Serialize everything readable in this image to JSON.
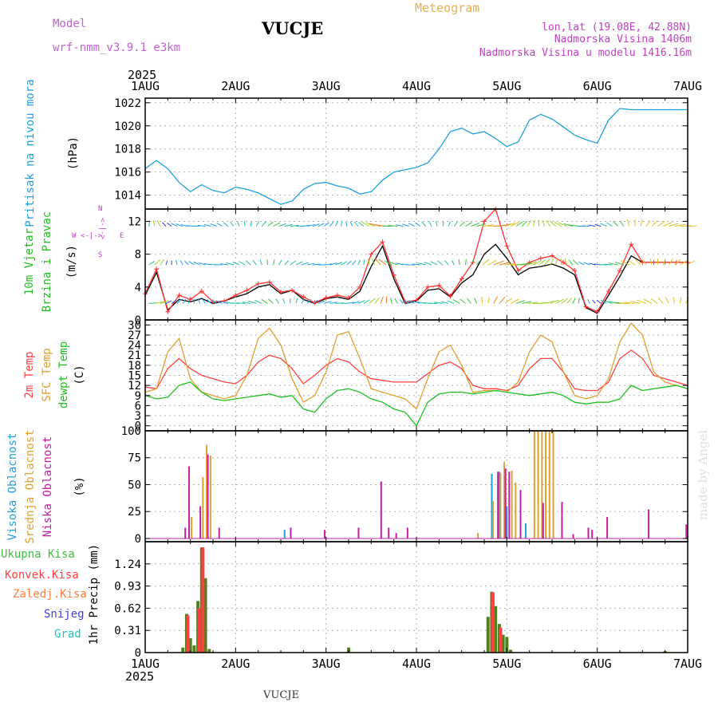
{
  "header": {
    "model_label": "Model",
    "model_name": "wrf-nmm_v3.9.1 e3km",
    "station": "VUCJE",
    "meteogram": "Meteogram",
    "lonlat": "lon,lat (19.08E, 42.88N)",
    "altitude": "Nadmorska Visina 1406m",
    "model_altitude": "Nadmorska Visina u modelu 1416.16m",
    "footer_station": "VUCJE",
    "watermark": "made by Angel",
    "year_top": "2025",
    "year_bottom": "2025",
    "colors": {
      "model": "#c060d0",
      "meteogram": "#e8b050",
      "info": "#c040c0"
    }
  },
  "axis_x": {
    "labels": [
      "1AUG",
      "2AUG",
      "3AUG",
      "4AUG",
      "5AUG",
      "6AUG",
      "7AUG"
    ],
    "range_hours": [
      0,
      144
    ]
  },
  "chart_data": [
    {
      "id": "pressure",
      "type": "line",
      "ylabel": [
        "Pritisak na nivou mora",
        "(hPa)"
      ],
      "ylim": [
        1012.8,
        1022.4
      ],
      "yticks": [
        1014,
        1016,
        1018,
        1020,
        1022
      ],
      "ytick_labels": [
        "1014",
        "1016",
        "1018",
        "1020",
        "1022"
      ],
      "color": "#20a0e0",
      "x": [
        0,
        3,
        6,
        9,
        12,
        15,
        18,
        21,
        24,
        27,
        30,
        33,
        36,
        39,
        42,
        45,
        48,
        51,
        54,
        57,
        60,
        63,
        66,
        69,
        72,
        75,
        78,
        81,
        84,
        87,
        90,
        93,
        96,
        99,
        102,
        105,
        108,
        111,
        114,
        117,
        120,
        123,
        126,
        129,
        132,
        135,
        138,
        141,
        144
      ],
      "values": [
        1016.3,
        1017.0,
        1016.3,
        1015.1,
        1014.3,
        1014.9,
        1014.4,
        1014.2,
        1014.7,
        1014.5,
        1014.2,
        1013.7,
        1013.2,
        1013.5,
        1014.5,
        1015.0,
        1015.1,
        1014.8,
        1014.6,
        1014.1,
        1014.3,
        1015.3,
        1016.0,
        1016.2,
        1016.4,
        1016.8,
        1018.0,
        1019.5,
        1019.8,
        1019.3,
        1019.5,
        1018.9,
        1018.2,
        1018.6,
        1020.5,
        1021.0,
        1020.6,
        1019.9,
        1019.2,
        1018.8,
        1018.5,
        1020.5,
        1021.5,
        1021.4,
        1021.4,
        1021.4,
        1021.4,
        1021.4,
        1021.4
      ]
    },
    {
      "id": "wind",
      "type": "line",
      "ylabel": [
        "10m Vjetar",
        "Brzina i Pravac",
        "(m/s)"
      ],
      "compass": {
        "n": "N",
        "w": "W",
        "e": "E",
        "s": "S",
        "arrows_h": "<-|->",
        "arrows_v": "<-|->"
      },
      "ylim": [
        0,
        13.5
      ],
      "yticks": [
        0,
        4,
        8,
        12
      ],
      "ytick_labels": [
        "0",
        "4",
        "8",
        "12"
      ],
      "x": [
        0,
        3,
        6,
        9,
        12,
        15,
        18,
        21,
        24,
        27,
        30,
        33,
        36,
        39,
        42,
        45,
        48,
        51,
        54,
        57,
        60,
        63,
        66,
        69,
        72,
        75,
        78,
        81,
        84,
        87,
        90,
        93,
        96,
        99,
        102,
        105,
        108,
        111,
        114,
        117,
        120,
        123,
        126,
        129,
        132,
        135,
        138,
        141,
        144
      ],
      "series": [
        {
          "name": "mean",
          "color": "#000000",
          "values": [
            3.0,
            5.8,
            1.2,
            2.5,
            2.2,
            2.6,
            2.0,
            2.3,
            2.8,
            3.2,
            4.0,
            4.3,
            3.2,
            3.6,
            2.5,
            2.0,
            2.6,
            2.8,
            2.5,
            3.5,
            6.5,
            9.0,
            5.0,
            2.0,
            2.3,
            3.6,
            3.8,
            2.8,
            4.5,
            5.5,
            8.0,
            9.2,
            7.5,
            5.5,
            6.3,
            6.5,
            6.8,
            6.3,
            5.5,
            1.5,
            0.8,
            3.0,
            5.3,
            7.8,
            7.0,
            7.0,
            7.0,
            7.0,
            7.0
          ]
        },
        {
          "name": "gust",
          "color": "#ff3030",
          "values": [
            3.2,
            6.2,
            1.0,
            3.0,
            2.5,
            3.5,
            2.2,
            2.3,
            3.0,
            3.6,
            4.4,
            4.6,
            3.4,
            3.6,
            2.8,
            2.1,
            2.7,
            3.0,
            2.7,
            4.0,
            8.0,
            9.5,
            5.5,
            2.2,
            2.4,
            4.0,
            4.2,
            2.9,
            5.0,
            7.0,
            12.0,
            13.5,
            9.0,
            6.0,
            7.0,
            7.5,
            7.8,
            7.0,
            6.0,
            1.6,
            1.0,
            3.5,
            6.0,
            9.2,
            7.0,
            7.0,
            7.0,
            7.0,
            7.0
          ]
        }
      ]
    },
    {
      "id": "temperature",
      "type": "line",
      "ylabel": [
        "2m Temp",
        "SFC Temp",
        "dewpt Temp",
        "(C)"
      ],
      "ylim": [
        -1.5,
        31.5
      ],
      "yticks": [
        0,
        3,
        6,
        9,
        12,
        15,
        18,
        21,
        24,
        27,
        30
      ],
      "ytick_labels": [
        "0",
        "3",
        "6",
        "9",
        "12",
        "15",
        "18",
        "21",
        "24",
        "27",
        "30"
      ],
      "x": [
        0,
        3,
        6,
        9,
        12,
        15,
        18,
        21,
        24,
        27,
        30,
        33,
        36,
        39,
        42,
        45,
        48,
        51,
        54,
        57,
        60,
        63,
        66,
        69,
        72,
        75,
        78,
        81,
        84,
        87,
        90,
        93,
        96,
        99,
        102,
        105,
        108,
        111,
        114,
        117,
        120,
        123,
        126,
        129,
        132,
        135,
        138,
        141,
        144
      ],
      "series": [
        {
          "name": "2m Temp",
          "color": "#ff4040",
          "values": [
            11.5,
            11.0,
            17.0,
            20.0,
            17.0,
            15.0,
            14.0,
            13.0,
            12.5,
            15.0,
            19.0,
            21.0,
            20.0,
            17.0,
            12.5,
            15.0,
            18.0,
            20.0,
            19.0,
            16.0,
            14.0,
            13.5,
            13.0,
            13.0,
            13.0,
            15.5,
            18.0,
            19.0,
            17.0,
            12.0,
            11.0,
            11.0,
            10.5,
            12.0,
            17.0,
            20.0,
            20.0,
            16.0,
            11.0,
            10.5,
            10.5,
            13.0,
            20.0,
            22.5,
            20.0,
            15.0,
            14.0,
            13.0,
            12.0
          ]
        },
        {
          "name": "SFC Temp",
          "color": "#e0a030",
          "values": [
            10.0,
            11.0,
            22.0,
            26.0,
            14.0,
            10.0,
            9.0,
            8.0,
            9.0,
            15.0,
            26.0,
            29.0,
            24.0,
            14.0,
            7.0,
            9.0,
            16.0,
            27.0,
            28.0,
            20.0,
            11.0,
            10.0,
            9.0,
            8.0,
            5.0,
            14.0,
            22.0,
            24.0,
            18.0,
            10.0,
            10.5,
            10.5,
            10.0,
            13.0,
            22.0,
            27.0,
            25.0,
            16.0,
            9.0,
            8.0,
            9.0,
            14.0,
            25.0,
            30.5,
            27.0,
            16.0,
            13.0,
            12.0,
            11.0
          ]
        },
        {
          "name": "dewpt Temp",
          "color": "#20c020",
          "values": [
            9.0,
            8.0,
            8.5,
            12.0,
            13.0,
            10.0,
            8.0,
            7.5,
            8.0,
            8.5,
            9.0,
            9.5,
            8.5,
            9.0,
            5.0,
            4.0,
            8.0,
            10.5,
            11.0,
            10.0,
            8.0,
            7.0,
            5.0,
            4.0,
            0.0,
            7.0,
            9.5,
            10.0,
            10.0,
            9.5,
            10.0,
            10.5,
            10.0,
            9.5,
            9.0,
            9.5,
            10.0,
            9.0,
            7.0,
            6.5,
            7.0,
            7.0,
            8.0,
            12.0,
            10.5,
            11.0,
            11.5,
            12.0,
            11.0
          ]
        }
      ]
    },
    {
      "id": "clouds",
      "type": "bar",
      "ylabel": [
        "Visoka Oblacnost",
        "Srednja Oblacnost",
        "Niska Oblacnost",
        "(%)"
      ],
      "ylim": [
        -3,
        100
      ],
      "yticks": [
        0,
        25,
        50,
        75,
        100
      ],
      "ytick_labels": [
        "0",
        "25",
        "50",
        "75",
        "100"
      ],
      "series": [
        {
          "name": "Visoka Oblacnost",
          "color": "#20a0e0",
          "bars": [
            [
              37,
              8
            ],
            [
              92,
              60
            ],
            [
              94,
              62
            ],
            [
              96,
              30
            ],
            [
              101,
              14
            ]
          ]
        },
        {
          "name": "Srednja Oblacnost",
          "color": "#e0a030",
          "bars": [
            [
              12,
              20
            ],
            [
              15,
              57
            ],
            [
              16,
              87
            ],
            [
              17,
              77
            ],
            [
              88,
              5
            ],
            [
              92,
              35
            ],
            [
              94,
              61
            ],
            [
              95,
              71
            ],
            [
              97,
              63
            ],
            [
              98,
              52
            ],
            [
              103,
              100
            ],
            [
              104,
              100
            ],
            [
              105,
              100
            ],
            [
              106,
              100
            ],
            [
              107,
              100
            ],
            [
              108,
              100
            ]
          ]
        },
        {
          "name": "Niska Oblacnost",
          "color": "#c020a0",
          "bars": [
            [
              10,
              10
            ],
            [
              11,
              67
            ],
            [
              14,
              30
            ],
            [
              16,
              78
            ],
            [
              19,
              10
            ],
            [
              38,
              10
            ],
            [
              47,
              8
            ],
            [
              56,
              10
            ],
            [
              62,
              53
            ],
            [
              64,
              10
            ],
            [
              66,
              5
            ],
            [
              69,
              10
            ],
            [
              93,
              62
            ],
            [
              95,
              65
            ],
            [
              96,
              62
            ],
            [
              99,
              45
            ],
            [
              105,
              33
            ],
            [
              110,
              34
            ],
            [
              113,
              4
            ],
            [
              117,
              10
            ],
            [
              118,
              8
            ],
            [
              122,
              20
            ],
            [
              133,
              27
            ],
            [
              143,
              13
            ]
          ]
        }
      ]
    },
    {
      "id": "precip",
      "type": "bar",
      "ylabel": [
        "1hr Precip (mm)"
      ],
      "legend": [
        "Ukupna Kisa",
        "Konvek.Kisa",
        "Zaledj.Kisa",
        "Snijeg",
        "Grad"
      ],
      "legend_colors": [
        "#40c040",
        "#ff4040",
        "#ff8040",
        "#4040e0",
        "#20c0c0"
      ],
      "ylim": [
        0,
        1.55
      ],
      "yticks": [
        0,
        0.31,
        0.62,
        0.93,
        1.24
      ],
      "ytick_labels": [
        "0",
        "0.31",
        "0.62",
        "0.93",
        "1.24"
      ],
      "series": [
        {
          "name": "Ukupna Kisa",
          "color": "#508020",
          "bars": [
            [
              10,
              0.07
            ],
            [
              11,
              0.54
            ],
            [
              12,
              0.2
            ],
            [
              13,
              0.1
            ],
            [
              14,
              0.72
            ],
            [
              15,
              1.47
            ],
            [
              16,
              1.04
            ],
            [
              17,
              0.05
            ],
            [
              54,
              0.07
            ],
            [
              91,
              0.5
            ],
            [
              92,
              0.85
            ],
            [
              93,
              0.65
            ],
            [
              94,
              0.4
            ],
            [
              95,
              0.25
            ],
            [
              96,
              0.22
            ],
            [
              97,
              0.04
            ],
            [
              138,
              0.02
            ]
          ]
        },
        {
          "name": "Konvek.Kisa",
          "color": "#ff4040",
          "bars": [
            [
              11,
              0.52
            ],
            [
              14,
              0.62
            ],
            [
              15,
              1.47
            ],
            [
              92,
              0.84
            ],
            [
              94,
              0.35
            ]
          ]
        }
      ]
    }
  ]
}
